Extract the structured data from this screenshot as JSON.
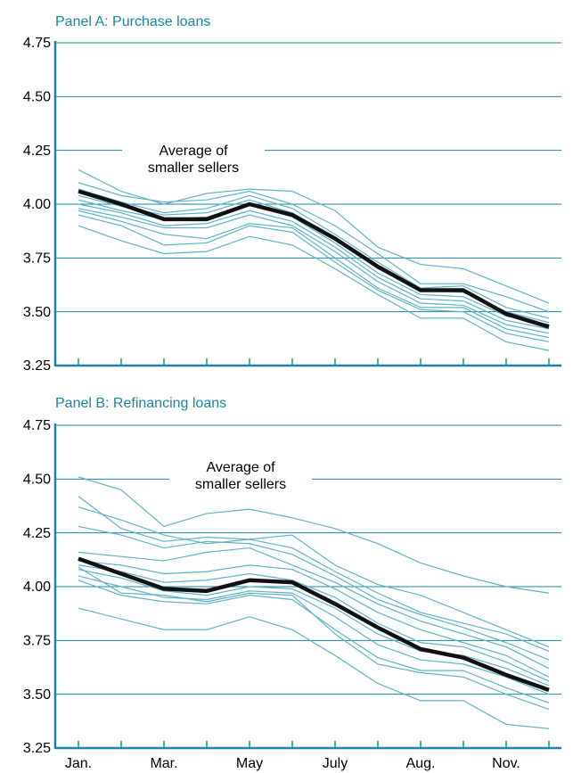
{
  "chart_data": [
    {
      "type": "line",
      "title": "Panel A: Purchase loans",
      "annotation": [
        "Average of",
        "smaller sellers"
      ],
      "ylim": [
        3.25,
        4.75
      ],
      "yticks": [
        4.75,
        {
          "value": 4.5,
          "label": "4.50"
        },
        4.25,
        {
          "value": 4.0,
          "label": "4.00"
        },
        3.75,
        {
          "value": 3.5,
          "label": "3.50"
        },
        3.25
      ],
      "grid": true,
      "series": [
        {
          "color": "#5fb2c8",
          "values": [
            4.16,
            4.06,
            4.0,
            4.05,
            4.07,
            4.06,
            3.97,
            3.8,
            3.72,
            3.7,
            3.62,
            3.54
          ]
        },
        {
          "color": "#5fb2c8",
          "values": [
            4.1,
            4.04,
            4.01,
            4.02,
            4.06,
            4.0,
            3.9,
            3.77,
            3.63,
            3.63,
            3.57,
            3.5
          ]
        },
        {
          "color": "#5fb2c8",
          "values": [
            4.07,
            4.01,
            3.96,
            3.98,
            4.04,
            3.98,
            3.86,
            3.73,
            3.61,
            3.62,
            3.52,
            3.47
          ]
        },
        {
          "color": "#5fb2c8",
          "values": [
            4.04,
            3.99,
            3.95,
            3.96,
            4.02,
            3.96,
            3.84,
            3.7,
            3.6,
            3.59,
            3.5,
            3.45
          ]
        },
        {
          "color": "#5fb2c8",
          "values": [
            4.02,
            3.97,
            3.93,
            3.94,
            4.0,
            3.94,
            3.82,
            3.68,
            3.58,
            3.57,
            3.48,
            3.44
          ]
        },
        {
          "color": "#5fb2c8",
          "values": [
            4.0,
            3.96,
            3.9,
            3.91,
            3.97,
            3.92,
            3.8,
            3.66,
            3.56,
            3.55,
            3.46,
            3.42
          ]
        },
        {
          "color": "#5fb2c8",
          "values": [
            3.98,
            3.94,
            3.89,
            3.89,
            3.95,
            3.9,
            3.78,
            3.64,
            3.54,
            3.53,
            3.44,
            3.4
          ]
        },
        {
          "color": "#5fb2c8",
          "values": [
            3.97,
            3.92,
            3.86,
            3.84,
            3.91,
            3.89,
            3.75,
            3.61,
            3.52,
            3.52,
            3.42,
            3.38
          ]
        },
        {
          "color": "#5fb2c8",
          "values": [
            3.95,
            3.9,
            3.81,
            3.82,
            3.9,
            3.87,
            3.73,
            3.6,
            3.51,
            3.5,
            3.4,
            3.36
          ]
        },
        {
          "color": "#5fb2c8",
          "values": [
            3.9,
            3.83,
            3.77,
            3.78,
            3.85,
            3.81,
            3.7,
            3.58,
            3.47,
            3.47,
            3.36,
            3.32
          ]
        },
        {
          "color": "#111111",
          "values": [
            4.06,
            4.0,
            3.93,
            3.93,
            4.0,
            3.95,
            3.84,
            3.71,
            3.6,
            3.6,
            3.49,
            3.43
          ]
        }
      ]
    },
    {
      "type": "line",
      "title": "Panel B: Refinancing loans",
      "annotation": [
        "Average of",
        "smaller sellers"
      ],
      "categories": [
        "Jan.",
        null,
        "Mar.",
        null,
        "May",
        null,
        "July",
        null,
        "Aug.",
        null,
        "Nov.",
        null
      ],
      "ylim": [
        3.25,
        4.75
      ],
      "yticks": [
        4.75,
        {
          "value": 4.5,
          "label": "4.50"
        },
        4.25,
        {
          "value": 4.0,
          "label": "4.00"
        },
        3.75,
        {
          "value": 3.5,
          "label": "3.50"
        },
        3.25
      ],
      "grid": true,
      "series": [
        {
          "color": "#5fb2c8",
          "values": [
            4.51,
            4.45,
            4.28,
            4.34,
            4.36,
            4.32,
            4.27,
            4.2,
            4.11,
            4.05,
            4.0,
            3.97
          ]
        },
        {
          "color": "#5fb2c8",
          "values": [
            4.42,
            4.27,
            4.21,
            4.23,
            4.22,
            4.24,
            4.1,
            4.01,
            3.96,
            3.88,
            3.8,
            3.72
          ]
        },
        {
          "color": "#5fb2c8",
          "values": [
            4.37,
            4.31,
            4.24,
            4.2,
            4.22,
            4.18,
            4.07,
            3.97,
            3.88,
            3.83,
            3.78,
            3.7
          ]
        },
        {
          "color": "#5fb2c8",
          "values": [
            4.28,
            4.24,
            4.18,
            4.21,
            4.2,
            4.15,
            4.05,
            3.94,
            3.87,
            3.81,
            3.74,
            3.66
          ]
        },
        {
          "color": "#5fb2c8",
          "values": [
            4.16,
            4.14,
            4.12,
            4.16,
            4.18,
            4.1,
            4.02,
            3.92,
            3.84,
            3.78,
            3.72,
            3.62
          ]
        },
        {
          "color": "#5fb2c8",
          "values": [
            4.12,
            4.1,
            4.06,
            4.07,
            4.1,
            4.08,
            3.99,
            3.88,
            3.8,
            3.74,
            3.68,
            3.58
          ]
        },
        {
          "color": "#5fb2c8",
          "values": [
            4.1,
            4.07,
            4.02,
            4.03,
            4.06,
            4.03,
            3.95,
            3.83,
            3.74,
            3.72,
            3.65,
            3.56
          ]
        },
        {
          "color": "#5fb2c8",
          "values": [
            4.08,
            4.04,
            3.98,
            3.96,
            4.0,
            3.99,
            3.9,
            3.78,
            3.7,
            3.68,
            3.62,
            3.54
          ]
        },
        {
          "color": "#5fb2c8",
          "values": [
            4.05,
            4.0,
            3.95,
            3.94,
            3.98,
            3.97,
            3.86,
            3.73,
            3.66,
            3.64,
            3.58,
            3.5
          ]
        },
        {
          "color": "#5fb2c8",
          "values": [
            4.03,
            3.96,
            3.93,
            3.92,
            3.96,
            3.94,
            3.8,
            3.67,
            3.61,
            3.61,
            3.53,
            3.46
          ]
        },
        {
          "color": "#5fb2c8",
          "values": [
            4.09,
            3.97,
            3.96,
            3.93,
            3.97,
            3.96,
            3.78,
            3.64,
            3.6,
            3.58,
            3.5,
            3.43
          ]
        },
        {
          "color": "#5fb2c8",
          "values": [
            3.9,
            3.85,
            3.8,
            3.8,
            3.86,
            3.8,
            3.68,
            3.55,
            3.47,
            3.47,
            3.36,
            3.34
          ]
        },
        {
          "color": "#111111",
          "values": [
            4.13,
            4.06,
            3.99,
            3.98,
            4.03,
            4.02,
            3.92,
            3.81,
            3.71,
            3.67,
            3.59,
            3.52
          ]
        }
      ]
    }
  ]
}
